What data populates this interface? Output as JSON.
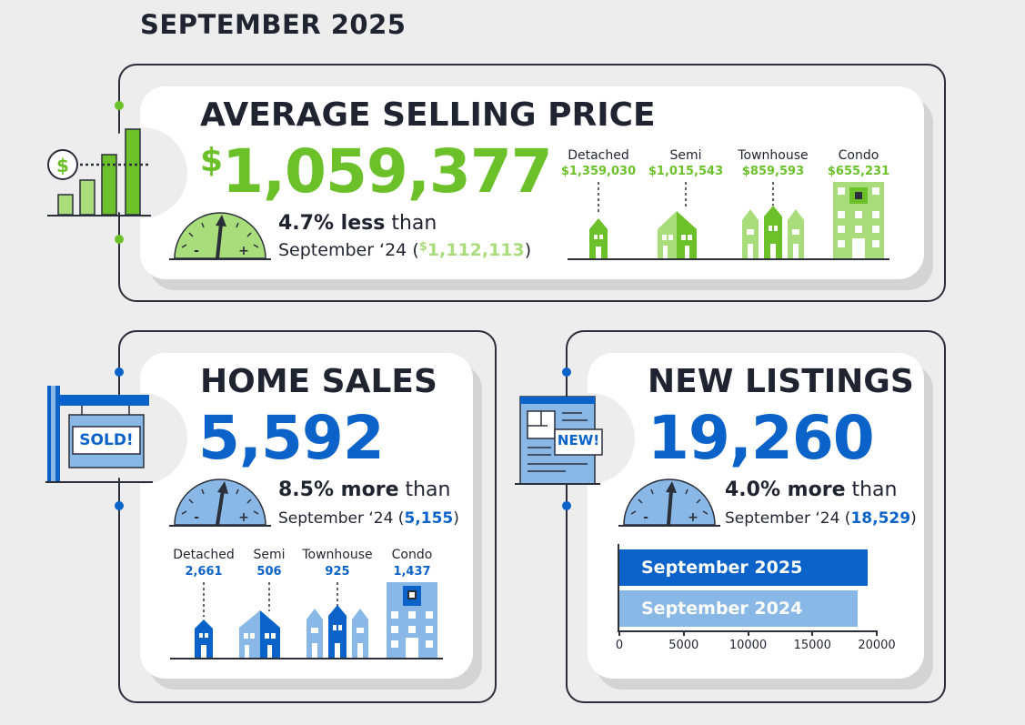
{
  "page_title": "SEPTEMBER 2025",
  "colors": {
    "green": "#6cc12a",
    "light_green": "#a9dc7a",
    "blue": "#0b62c9",
    "light_blue": "#8ab8e6",
    "dark": "#1f2430"
  },
  "avg_price": {
    "title": "AVERAGE SELLING PRICE",
    "currency": "$",
    "value": "1,059,377",
    "change_pct": "4.7% less",
    "than": "than",
    "prev_label": "September ‘24 (",
    "prev_currency": "$",
    "prev_value": "1,112,113",
    "close_paren": ")",
    "types": [
      {
        "label": "Detached",
        "value": "$1,359,030"
      },
      {
        "label": "Semi",
        "value": "$1,015,543"
      },
      {
        "label": "Townhouse",
        "value": "$859,593"
      },
      {
        "label": "Condo",
        "value": "$655,231"
      }
    ]
  },
  "home_sales": {
    "title": "HOME SALES",
    "value": "5,592",
    "change_pct": "8.5% more",
    "than": "than",
    "prev_label": "September ‘24 (",
    "prev_value": "5,155",
    "close_paren": ")",
    "sign_text": "SOLD!",
    "types": [
      {
        "label": "Detached",
        "value": "2,661"
      },
      {
        "label": "Semi",
        "value": "506"
      },
      {
        "label": "Townhouse",
        "value": "925"
      },
      {
        "label": "Condo",
        "value": "1,437"
      }
    ]
  },
  "new_listings": {
    "title": "NEW LISTINGS",
    "value": "19,260",
    "change_pct": "4.0% more",
    "than": "than",
    "prev_label": "September ‘24 (",
    "prev_value": "18,529",
    "close_paren": ")",
    "badge_text": "NEW!"
  },
  "chart_data": {
    "type": "bar",
    "orientation": "horizontal",
    "categories": [
      "September 2025",
      "September 2024"
    ],
    "values": [
      19260,
      18529
    ],
    "xlim": [
      0,
      20000
    ],
    "xticks": [
      "0",
      "5000",
      "10000",
      "15000",
      "20000"
    ],
    "colors": [
      "#0b62c9",
      "#8ab8e6"
    ]
  }
}
